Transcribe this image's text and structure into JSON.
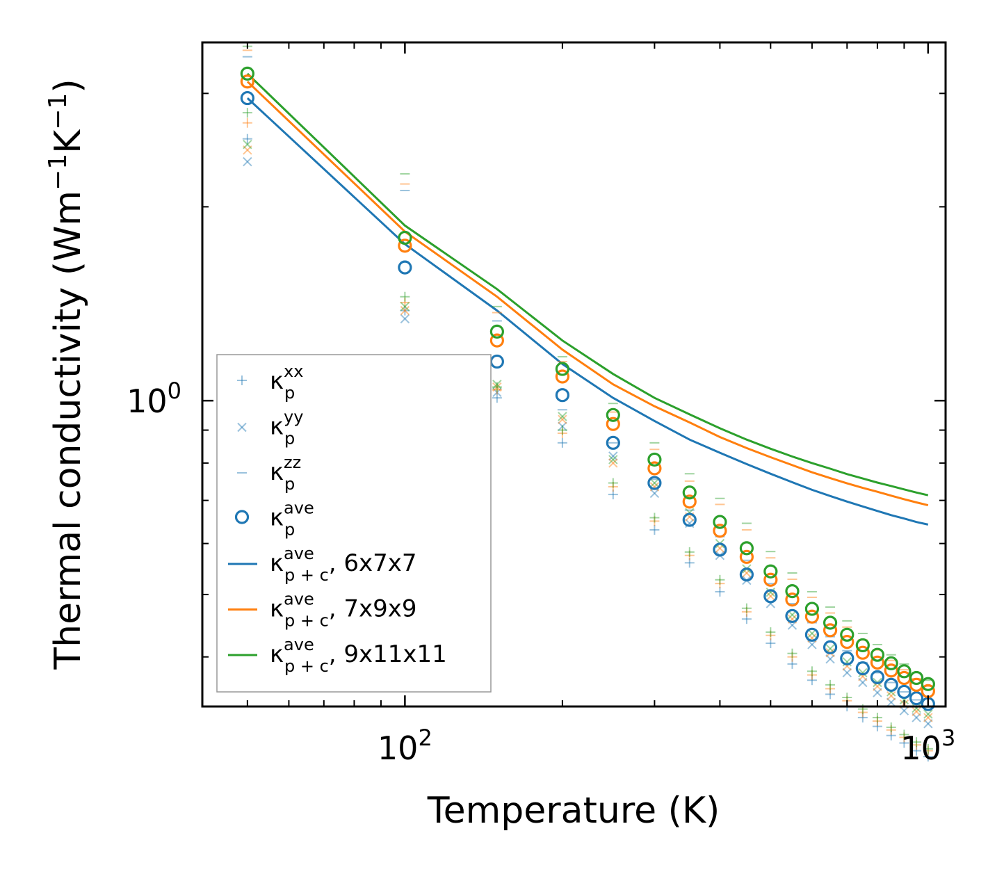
{
  "chart_data": {
    "type": "scatter",
    "title": "",
    "xlabel": "Temperature (K)",
    "ylabel": "Thermal conductivity (Wm",
    "ylabel_parts": [
      "Thermal conductivity (Wm",
      "−1",
      "K",
      "−1",
      ")"
    ],
    "xscale": "log",
    "yscale": "log",
    "xlim": [
      41,
      1080
    ],
    "ylim": [
      0.335,
      3.6
    ],
    "x_ticks": [
      {
        "base": "10",
        "exp": "2",
        "value": 100
      },
      {
        "base": "10",
        "exp": "3",
        "value": 1000
      }
    ],
    "y_ticks": [
      {
        "base": "10",
        "exp": "0",
        "value": 1
      }
    ],
    "temperatures": [
      50,
      100,
      150,
      200,
      250,
      300,
      350,
      400,
      450,
      500,
      550,
      600,
      650,
      700,
      750,
      800,
      850,
      900,
      950,
      1000
    ],
    "series": [
      {
        "name": "kp_ave, 6x7x7",
        "color": "#1f77b4",
        "xx": [
          2.55,
          1.38,
          1.01,
          0.86,
          0.715,
          0.63,
          0.56,
          0.505,
          0.458,
          0.42,
          0.39,
          0.368,
          0.35,
          0.335,
          0.322,
          0.312,
          0.302,
          0.294,
          0.286,
          0.28
        ],
        "yy": [
          2.35,
          1.34,
          1.03,
          0.912,
          0.82,
          0.718,
          0.645,
          0.575,
          0.526,
          0.484,
          0.448,
          0.418,
          0.397,
          0.378,
          0.365,
          0.352,
          0.34,
          0.33,
          0.322,
          0.315
        ],
        "zz": [
          3.42,
          2.12,
          1.33,
          0.968,
          0.86,
          0.755,
          0.676,
          0.615,
          0.565,
          0.52,
          0.484,
          0.452,
          0.43,
          0.409,
          0.392,
          0.378,
          0.365,
          0.353,
          0.343,
          0.334
        ],
        "ave": [
          2.95,
          1.61,
          1.15,
          1.02,
          0.86,
          0.745,
          0.653,
          0.587,
          0.537,
          0.497,
          0.463,
          0.433,
          0.414,
          0.398,
          0.384,
          0.372,
          0.362,
          0.353,
          0.345,
          0.338
        ],
        "pc": [
          2.95,
          1.75,
          1.38,
          1.14,
          1.01,
          0.93,
          0.87,
          0.83,
          0.797,
          0.77,
          0.747,
          0.727,
          0.711,
          0.697,
          0.685,
          0.674,
          0.664,
          0.656,
          0.648,
          0.642
        ]
      },
      {
        "name": "kp_ave, 7x9x9",
        "color": "#ff7f0e",
        "xx": [
          2.7,
          1.42,
          1.04,
          0.89,
          0.735,
          0.65,
          0.575,
          0.52,
          0.47,
          0.432,
          0.4,
          0.375,
          0.357,
          0.342,
          0.328,
          0.318,
          0.308,
          0.3,
          0.292,
          0.286
        ],
        "yy": [
          2.45,
          1.38,
          1.05,
          0.935,
          0.8,
          0.735,
          0.66,
          0.59,
          0.54,
          0.497,
          0.458,
          0.428,
          0.406,
          0.387,
          0.373,
          0.36,
          0.348,
          0.338,
          0.329,
          0.322
        ],
        "zz": [
          3.5,
          2.17,
          1.37,
          1.15,
          0.96,
          0.84,
          0.75,
          0.69,
          0.63,
          0.57,
          0.528,
          0.495,
          0.468,
          0.445,
          0.425,
          0.41,
          0.395,
          0.382,
          0.37,
          0.36
        ],
        "ave": [
          3.13,
          1.74,
          1.24,
          1.09,
          0.92,
          0.785,
          0.697,
          0.628,
          0.572,
          0.527,
          0.491,
          0.462,
          0.44,
          0.422,
          0.406,
          0.392,
          0.381,
          0.371,
          0.362,
          0.354
        ],
        "pc": [
          3.13,
          1.83,
          1.45,
          1.2,
          1.06,
          0.98,
          0.925,
          0.878,
          0.844,
          0.817,
          0.794,
          0.774,
          0.758,
          0.744,
          0.732,
          0.722,
          0.712,
          0.703,
          0.695,
          0.688
        ]
      },
      {
        "name": "kp_ave, 9x11x11",
        "color": "#2ca02c",
        "xx": [
          2.8,
          1.45,
          1.05,
          0.9,
          0.745,
          0.658,
          0.582,
          0.527,
          0.476,
          0.437,
          0.405,
          0.38,
          0.362,
          0.346,
          0.332,
          0.322,
          0.311,
          0.303,
          0.295,
          0.288
        ],
        "yy": [
          2.5,
          1.4,
          1.06,
          0.945,
          0.81,
          0.745,
          0.67,
          0.6,
          0.548,
          0.504,
          0.465,
          0.435,
          0.412,
          0.393,
          0.378,
          0.365,
          0.353,
          0.343,
          0.333,
          0.326
        ],
        "zz": [
          3.55,
          2.25,
          1.4,
          1.17,
          0.99,
          0.86,
          0.77,
          0.705,
          0.645,
          0.583,
          0.54,
          0.505,
          0.478,
          0.455,
          0.435,
          0.418,
          0.403,
          0.39,
          0.378,
          0.368
        ],
        "ave": [
          3.22,
          1.79,
          1.28,
          1.12,
          0.95,
          0.81,
          0.72,
          0.648,
          0.59,
          0.543,
          0.506,
          0.475,
          0.452,
          0.433,
          0.417,
          0.403,
          0.391,
          0.38,
          0.371,
          0.363
        ],
        "pc": [
          3.22,
          1.87,
          1.49,
          1.24,
          1.1,
          1.01,
          0.952,
          0.906,
          0.87,
          0.842,
          0.819,
          0.8,
          0.784,
          0.769,
          0.757,
          0.746,
          0.737,
          0.728,
          0.72,
          0.713
        ]
      }
    ],
    "legend": {
      "placement": "lower-left",
      "entries": [
        {
          "marker": "plus",
          "symbol": "κ",
          "sub": "p",
          "sup": "xx",
          "suffix": ""
        },
        {
          "marker": "cross",
          "symbol": "κ",
          "sub": "p",
          "sup": "yy",
          "suffix": ""
        },
        {
          "marker": "dash",
          "symbol": "κ",
          "sub": "p",
          "sup": "zz",
          "suffix": ""
        },
        {
          "marker": "circle",
          "symbol": "κ",
          "sub": "p",
          "sup": "ave",
          "suffix": ""
        },
        {
          "marker": "line",
          "color": "#1f77b4",
          "symbol": "κ",
          "sub": "p + c",
          "sup": "ave",
          "suffix": ", 6x7x7"
        },
        {
          "marker": "line",
          "color": "#ff7f0e",
          "symbol": "κ",
          "sub": "p + c",
          "sup": "ave",
          "suffix": ", 7x9x9"
        },
        {
          "marker": "line",
          "color": "#2ca02c",
          "symbol": "κ",
          "sub": "p + c",
          "sup": "ave",
          "suffix": ", 9x11x11"
        }
      ]
    }
  }
}
